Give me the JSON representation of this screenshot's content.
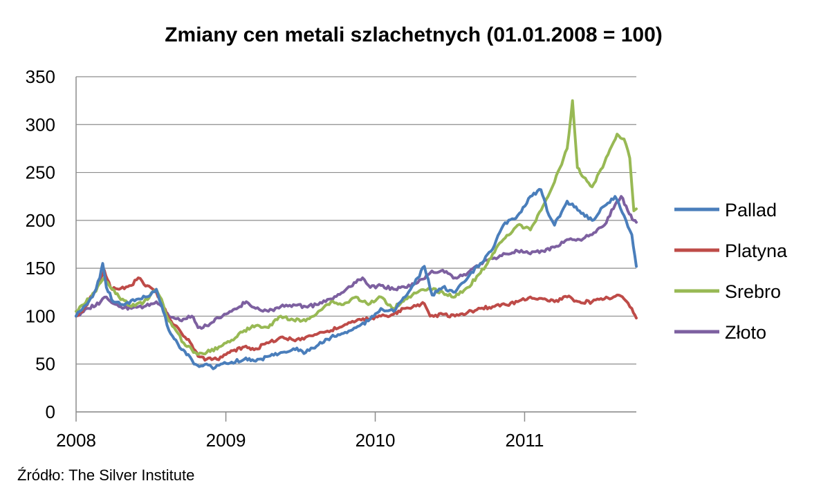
{
  "chart_data": {
    "type": "line",
    "title": "Zmiany cen metali szlachetnych (01.01.2008 = 100)",
    "ylim": [
      0,
      350
    ],
    "yticks": [
      "0",
      "50",
      "100",
      "150",
      "200",
      "250",
      "300",
      "350"
    ],
    "xlim": [
      "2008-01-01",
      "2011-10-01"
    ],
    "xticks": [
      "2008",
      "2009",
      "2010",
      "2011"
    ],
    "grid": true,
    "legend_position": "right",
    "source": "Źródło: The Silver Institute",
    "series": [
      {
        "name": "Pallad",
        "color": "#4a7ebb",
        "points": [
          [
            "2008-01-01",
            100
          ],
          [
            "2008-01-20",
            110
          ],
          [
            "2008-02-10",
            120
          ],
          [
            "2008-02-28",
            140
          ],
          [
            "2008-03-06",
            155
          ],
          [
            "2008-03-15",
            130
          ],
          [
            "2008-04-01",
            115
          ],
          [
            "2008-05-01",
            113
          ],
          [
            "2008-06-01",
            118
          ],
          [
            "2008-07-01",
            122
          ],
          [
            "2008-07-15",
            128
          ],
          [
            "2008-08-01",
            105
          ],
          [
            "2008-08-15",
            85
          ],
          [
            "2008-09-01",
            75
          ],
          [
            "2008-09-15",
            65
          ],
          [
            "2008-10-01",
            60
          ],
          [
            "2008-10-15",
            50
          ],
          [
            "2008-11-01",
            48
          ],
          [
            "2008-11-15",
            50
          ],
          [
            "2008-12-01",
            45
          ],
          [
            "2008-12-20",
            50
          ],
          [
            "2009-01-15",
            52
          ],
          [
            "2009-02-15",
            55
          ],
          [
            "2009-03-15",
            53
          ],
          [
            "2009-04-15",
            58
          ],
          [
            "2009-05-15",
            62
          ],
          [
            "2009-06-15",
            66
          ],
          [
            "2009-07-15",
            62
          ],
          [
            "2009-08-15",
            70
          ],
          [
            "2009-09-15",
            78
          ],
          [
            "2009-10-15",
            82
          ],
          [
            "2009-11-15",
            88
          ],
          [
            "2009-12-15",
            95
          ],
          [
            "2010-01-15",
            108
          ],
          [
            "2010-02-15",
            105
          ],
          [
            "2010-03-15",
            120
          ],
          [
            "2010-04-15",
            140
          ],
          [
            "2010-05-01",
            152
          ],
          [
            "2010-05-20",
            122
          ],
          [
            "2010-06-15",
            130
          ],
          [
            "2010-07-15",
            125
          ],
          [
            "2010-08-15",
            140
          ],
          [
            "2010-09-15",
            155
          ],
          [
            "2010-10-15",
            170
          ],
          [
            "2010-11-10",
            195
          ],
          [
            "2010-12-15",
            205
          ],
          [
            "2011-01-15",
            225
          ],
          [
            "2011-02-10",
            232
          ],
          [
            "2011-02-25",
            210
          ],
          [
            "2011-03-15",
            195
          ],
          [
            "2011-04-15",
            220
          ],
          [
            "2011-05-15",
            210
          ],
          [
            "2011-06-15",
            200
          ],
          [
            "2011-07-15",
            215
          ],
          [
            "2011-08-10",
            225
          ],
          [
            "2011-09-01",
            205
          ],
          [
            "2011-09-20",
            185
          ],
          [
            "2011-10-01",
            152
          ]
        ]
      },
      {
        "name": "Platyna",
        "color": "#be4b48",
        "points": [
          [
            "2008-01-01",
            100
          ],
          [
            "2008-01-20",
            108
          ],
          [
            "2008-02-15",
            125
          ],
          [
            "2008-03-01",
            140
          ],
          [
            "2008-03-10",
            148
          ],
          [
            "2008-03-25",
            130
          ],
          [
            "2008-04-15",
            128
          ],
          [
            "2008-05-15",
            132
          ],
          [
            "2008-06-01",
            140
          ],
          [
            "2008-06-15",
            133
          ],
          [
            "2008-07-01",
            130
          ],
          [
            "2008-07-15",
            125
          ],
          [
            "2008-08-01",
            110
          ],
          [
            "2008-08-20",
            95
          ],
          [
            "2008-09-15",
            82
          ],
          [
            "2008-10-10",
            70
          ],
          [
            "2008-10-25",
            58
          ],
          [
            "2008-11-15",
            55
          ],
          [
            "2008-12-10",
            55
          ],
          [
            "2009-01-10",
            62
          ],
          [
            "2009-02-15",
            68
          ],
          [
            "2009-03-15",
            66
          ],
          [
            "2009-04-15",
            72
          ],
          [
            "2009-05-15",
            78
          ],
          [
            "2009-06-15",
            75
          ],
          [
            "2009-07-15",
            78
          ],
          [
            "2009-08-15",
            82
          ],
          [
            "2009-09-15",
            85
          ],
          [
            "2009-10-15",
            90
          ],
          [
            "2009-11-15",
            95
          ],
          [
            "2009-12-15",
            97
          ],
          [
            "2010-01-15",
            100
          ],
          [
            "2010-02-15",
            102
          ],
          [
            "2010-03-15",
            108
          ],
          [
            "2010-04-15",
            112
          ],
          [
            "2010-05-01",
            113
          ],
          [
            "2010-05-15",
            100
          ],
          [
            "2010-06-15",
            102
          ],
          [
            "2010-07-15",
            100
          ],
          [
            "2010-08-15",
            104
          ],
          [
            "2010-09-15",
            108
          ],
          [
            "2010-10-15",
            110
          ],
          [
            "2010-11-15",
            112
          ],
          [
            "2010-12-15",
            115
          ],
          [
            "2011-01-15",
            120
          ],
          [
            "2011-02-15",
            118
          ],
          [
            "2011-03-15",
            115
          ],
          [
            "2011-04-15",
            120
          ],
          [
            "2011-05-15",
            115
          ],
          [
            "2011-06-15",
            115
          ],
          [
            "2011-07-15",
            118
          ],
          [
            "2011-08-15",
            122
          ],
          [
            "2011-09-01",
            118
          ],
          [
            "2011-09-20",
            108
          ],
          [
            "2011-10-01",
            98
          ]
        ]
      },
      {
        "name": "Srebro",
        "color": "#98b954",
        "points": [
          [
            "2008-01-01",
            105
          ],
          [
            "2008-01-20",
            112
          ],
          [
            "2008-02-15",
            125
          ],
          [
            "2008-03-01",
            135
          ],
          [
            "2008-03-10",
            140
          ],
          [
            "2008-03-25",
            130
          ],
          [
            "2008-04-15",
            120
          ],
          [
            "2008-05-15",
            110
          ],
          [
            "2008-06-15",
            115
          ],
          [
            "2008-07-15",
            128
          ],
          [
            "2008-08-01",
            112
          ],
          [
            "2008-08-15",
            95
          ],
          [
            "2008-09-01",
            85
          ],
          [
            "2008-09-20",
            72
          ],
          [
            "2008-10-10",
            65
          ],
          [
            "2008-10-25",
            60
          ],
          [
            "2008-11-15",
            62
          ],
          [
            "2008-12-15",
            68
          ],
          [
            "2009-01-15",
            75
          ],
          [
            "2009-02-15",
            85
          ],
          [
            "2009-03-15",
            90
          ],
          [
            "2009-04-15",
            88
          ],
          [
            "2009-05-15",
            100
          ],
          [
            "2009-06-15",
            96
          ],
          [
            "2009-07-15",
            95
          ],
          [
            "2009-08-15",
            105
          ],
          [
            "2009-09-15",
            115
          ],
          [
            "2009-10-15",
            112
          ],
          [
            "2009-11-15",
            120
          ],
          [
            "2009-12-15",
            112
          ],
          [
            "2010-01-15",
            120
          ],
          [
            "2010-02-15",
            108
          ],
          [
            "2010-03-15",
            118
          ],
          [
            "2010-04-15",
            125
          ],
          [
            "2010-05-15",
            128
          ],
          [
            "2010-06-15",
            125
          ],
          [
            "2010-07-15",
            120
          ],
          [
            "2010-08-15",
            130
          ],
          [
            "2010-09-15",
            145
          ],
          [
            "2010-10-15",
            165
          ],
          [
            "2010-11-10",
            180
          ],
          [
            "2010-12-15",
            195
          ],
          [
            "2011-01-15",
            190
          ],
          [
            "2011-02-15",
            215
          ],
          [
            "2011-03-15",
            240
          ],
          [
            "2011-04-15",
            275
          ],
          [
            "2011-04-28",
            325
          ],
          [
            "2011-05-10",
            255
          ],
          [
            "2011-05-25",
            245
          ],
          [
            "2011-06-15",
            235
          ],
          [
            "2011-07-15",
            260
          ],
          [
            "2011-08-15",
            290
          ],
          [
            "2011-09-01",
            285
          ],
          [
            "2011-09-15",
            265
          ],
          [
            "2011-09-25",
            210
          ],
          [
            "2011-10-01",
            212
          ]
        ]
      },
      {
        "name": "Złoto",
        "color": "#7d60a0",
        "points": [
          [
            "2008-01-01",
            100
          ],
          [
            "2008-02-01",
            108
          ],
          [
            "2008-03-01",
            115
          ],
          [
            "2008-03-15",
            120
          ],
          [
            "2008-04-15",
            110
          ],
          [
            "2008-05-15",
            108
          ],
          [
            "2008-06-15",
            110
          ],
          [
            "2008-07-15",
            115
          ],
          [
            "2008-08-15",
            100
          ],
          [
            "2008-09-15",
            95
          ],
          [
            "2008-10-10",
            100
          ],
          [
            "2008-10-25",
            88
          ],
          [
            "2008-11-15",
            90
          ],
          [
            "2008-12-15",
            98
          ],
          [
            "2009-01-15",
            105
          ],
          [
            "2009-02-20",
            115
          ],
          [
            "2009-03-15",
            108
          ],
          [
            "2009-04-15",
            105
          ],
          [
            "2009-05-15",
            110
          ],
          [
            "2009-06-15",
            112
          ],
          [
            "2009-07-15",
            110
          ],
          [
            "2009-08-15",
            112
          ],
          [
            "2009-09-15",
            118
          ],
          [
            "2009-10-15",
            125
          ],
          [
            "2009-11-15",
            135
          ],
          [
            "2009-12-01",
            140
          ],
          [
            "2009-12-20",
            130
          ],
          [
            "2010-01-15",
            132
          ],
          [
            "2010-02-15",
            128
          ],
          [
            "2010-03-15",
            130
          ],
          [
            "2010-04-15",
            135
          ],
          [
            "2010-05-15",
            145
          ],
          [
            "2010-06-15",
            148
          ],
          [
            "2010-07-15",
            140
          ],
          [
            "2010-08-15",
            145
          ],
          [
            "2010-09-15",
            155
          ],
          [
            "2010-10-15",
            160
          ],
          [
            "2010-11-15",
            165
          ],
          [
            "2010-12-15",
            168
          ],
          [
            "2011-01-15",
            165
          ],
          [
            "2011-02-15",
            168
          ],
          [
            "2011-03-15",
            172
          ],
          [
            "2011-04-15",
            180
          ],
          [
            "2011-05-15",
            180
          ],
          [
            "2011-06-15",
            185
          ],
          [
            "2011-07-15",
            195
          ],
          [
            "2011-08-15",
            220
          ],
          [
            "2011-08-25",
            225
          ],
          [
            "2011-09-10",
            210
          ],
          [
            "2011-09-25",
            200
          ],
          [
            "2011-10-01",
            198
          ]
        ]
      }
    ]
  }
}
